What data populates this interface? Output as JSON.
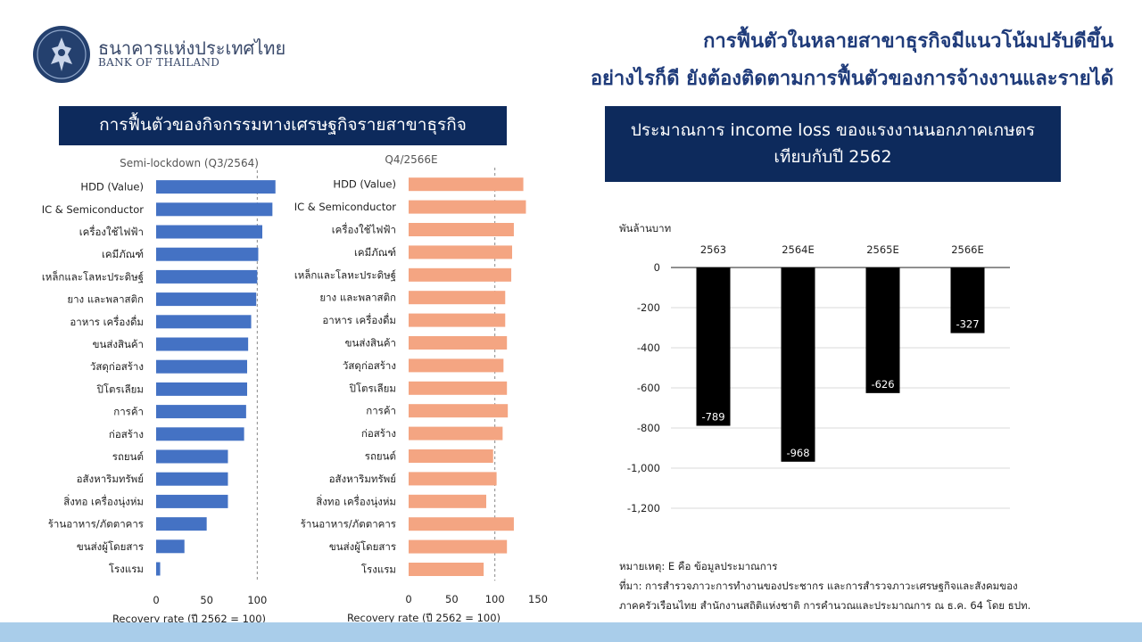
{
  "header": {
    "org_name_th": "ธนาคารแห่งประเทศไทย",
    "org_name_en": "BANK OF THAILAND",
    "headline_line1": "การฟื้นตัวในหลายสาขาธุรกิจมีแนวโน้มปรับดีขึ้น",
    "headline_line2": "อย่างไรก็ดี ยังต้องติดตามการฟื้นตัวของการจ้างงานและรายได้"
  },
  "left_panel": {
    "title": "การฟื้นตัวของกิจกรรมทางเศรษฐกิจรายสาขาธุรกิจ"
  },
  "right_panel": {
    "title_line1": "ประมาณการ income loss ของแรงงานนอกภาคเกษตร",
    "title_line2": "เทียบกับปี 2562"
  },
  "notes": {
    "line1": "หมายเหตุ: E คือ ข้อมูลประมาณการ",
    "line2": "ที่มา: การสำรวจภาวะการทำงานของประชากร และการสำรวจภาวะเศรษฐกิจและสังคมของ",
    "line3": "ภาคครัวเรือนไทย สำนักงานสถิติแห่งชาติ การคำนวณและประมาณการ ณ ธ.ค. 64 โดย ธปท."
  },
  "colors": {
    "navy": "#0d2a5c",
    "blue_bar": "#4472c4",
    "salmon_bar": "#f4a582",
    "black_bar": "#000000",
    "headline": "#1f3b7a",
    "band": "#a9cdea"
  },
  "chart_data": [
    {
      "type": "bar",
      "orientation": "horizontal",
      "title": "Semi-lockdown (Q3/2564)",
      "xlabel": "Recovery rate (ปี 2562 = 100)",
      "xlim": [
        0,
        120
      ],
      "xticks": [
        0,
        50,
        100
      ],
      "reference_line": 100,
      "categories": [
        "HDD (Value)",
        "IC & Semiconductor",
        "เครื่องใช้ไฟฟ้า",
        "เคมีภัณฑ์",
        "เหล็กและโลหะประดิษฐ์",
        "ยาง และพลาสติก",
        "อาหาร เครื่องดื่ม",
        "ขนส่งสินค้า",
        "วัสดุก่อสร้าง",
        "ปิโตรเลียม",
        "การค้า",
        "ก่อสร้าง",
        "รถยนต์",
        "อสังหาริมทรัพย์",
        "สิ่งทอ เครื่องนุ่งห่ม",
        "ร้านอาหาร/ภัตตาคาร",
        "ขนส่งผู้โดยสาร",
        "โรงแรม"
      ],
      "values": [
        118,
        115,
        105,
        101,
        100,
        99,
        94,
        91,
        90,
        90,
        89,
        87,
        71,
        71,
        71,
        50,
        28,
        4
      ]
    },
    {
      "type": "bar",
      "orientation": "horizontal",
      "title": "Q4/2566E",
      "xlabel": "Recovery rate (ปี 2562 = 100)",
      "xlim": [
        0,
        150
      ],
      "xticks": [
        0,
        50,
        100,
        150
      ],
      "reference_line": 100,
      "categories": [
        "HDD (Value)",
        "IC & Semiconductor",
        "เครื่องใช้ไฟฟ้า",
        "เคมีภัณฑ์",
        "เหล็กและโลหะประดิษฐ์",
        "ยาง และพลาสติก",
        "อาหาร เครื่องดื่ม",
        "ขนส่งสินค้า",
        "วัสดุก่อสร้าง",
        "ปิโตรเลียม",
        "การค้า",
        "ก่อสร้าง",
        "รถยนต์",
        "อสังหาริมทรัพย์",
        "สิ่งทอ เครื่องนุ่งห่ม",
        "ร้านอาหาร/ภัตตาคาร",
        "ขนส่งผู้โดยสาร",
        "โรงแรม"
      ],
      "values": [
        133,
        136,
        122,
        120,
        119,
        112,
        112,
        114,
        110,
        114,
        115,
        109,
        98,
        102,
        90,
        122,
        114,
        87
      ]
    },
    {
      "type": "bar",
      "orientation": "vertical",
      "ylabel": "พันล้านบาท",
      "ylim": [
        -1200,
        0
      ],
      "yticks": [
        0,
        -200,
        -400,
        -600,
        -800,
        -1000,
        -1200
      ],
      "ytick_labels": [
        "0",
        "-200",
        "-400",
        "-600",
        "-800",
        "-1,000",
        "-1,200"
      ],
      "categories": [
        "2563",
        "2564E",
        "2565E",
        "2566E"
      ],
      "values": [
        -789,
        -968,
        -626,
        -327
      ],
      "data_labels": [
        "-789",
        "-968",
        "-626",
        "-327"
      ]
    }
  ]
}
